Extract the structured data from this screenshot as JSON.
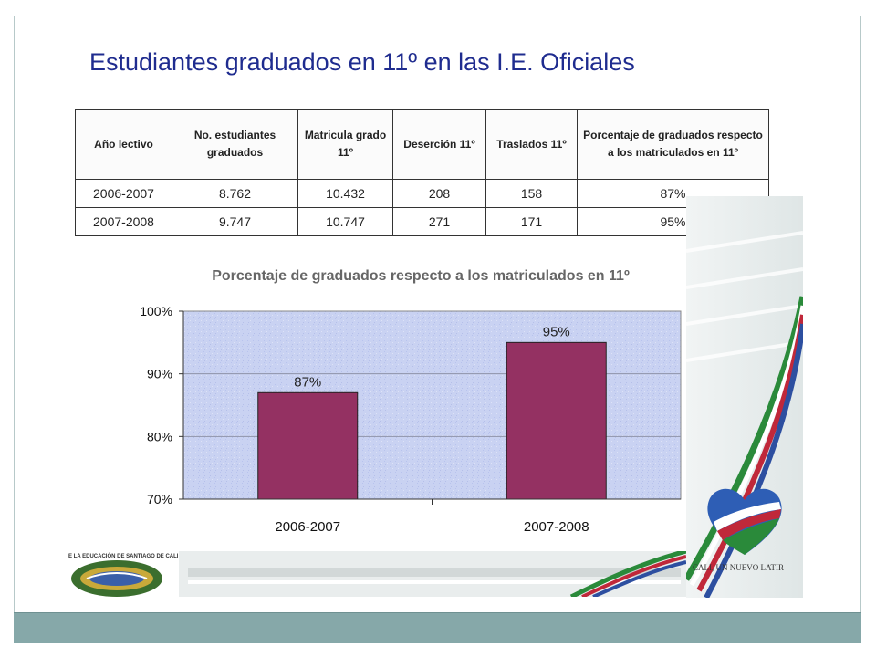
{
  "slide": {
    "title": "Estudiantes graduados en 11º en las I.E. Oficiales"
  },
  "table": {
    "headers": [
      "Año lectivo",
      "No. estudiantes graduados",
      "Matricula grado 11º",
      "Deserción 11º",
      "Traslados 11º",
      "Porcentaje de graduados respecto a los matriculados en 11º"
    ],
    "rows": [
      [
        "2006-2007",
        "8.762",
        "10.432",
        "208",
        "158",
        "87%"
      ],
      [
        "2007-2008",
        "9.747",
        "10.747",
        "271",
        "171",
        "95%"
      ]
    ]
  },
  "chart_data": {
    "type": "bar",
    "title": "Porcentaje de graduados respecto a los matriculados en 11º",
    "categories": [
      "2006-2007",
      "2007-2008"
    ],
    "values": [
      87,
      95
    ],
    "data_labels": [
      "87%",
      "95%"
    ],
    "ylim": [
      70,
      100
    ],
    "yticks": [
      70,
      80,
      90,
      100
    ],
    "ytick_labels": [
      "70%",
      "80%",
      "90%",
      "100%"
    ],
    "grid": true,
    "bar_color": "#943162",
    "plot_background": "#c9d2f2"
  },
  "branding": {
    "logo_caption": "CALI, UN NUEVO LATIR",
    "emblem_text": "E LA EDUCACIÓN DE SANTIAGO DE CALI"
  },
  "colors": {
    "title": "#1f2c8f",
    "footer": "#86a8a9"
  }
}
